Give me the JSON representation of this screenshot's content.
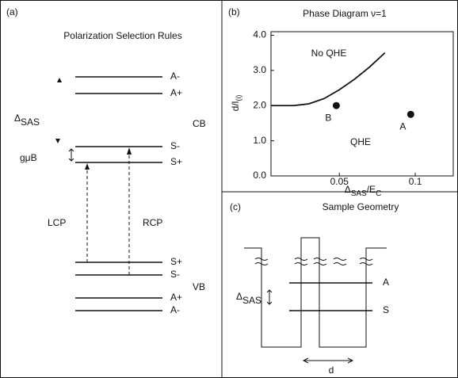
{
  "panel_a": {
    "label": "(a)",
    "title": "Polarization Selection Rules",
    "levels_top": [
      "A-",
      "A+",
      "S-",
      "S+"
    ],
    "cb": "CB",
    "gmub": "gμB",
    "delta": "Δ",
    "delta_sub": "SAS",
    "lcp": "LCP",
    "rcp": "RCP",
    "levels_bottom": [
      "S+",
      "S-",
      "A+",
      "A-"
    ],
    "vb": "VB"
  },
  "chart_data": {
    "type": "line",
    "label": "(b)",
    "title": "Phase Diagram ν=1",
    "ylabel": [
      "d/l",
      "(i)"
    ],
    "xlabel": [
      "Δ",
      "SAS",
      "/E",
      "C"
    ],
    "xlim": [
      0.005,
      0.125
    ],
    "ylim": [
      0,
      4.1
    ],
    "xticks": [
      0.05,
      0.1
    ],
    "yticks": [
      {
        "value": 0,
        "label": "0.0"
      },
      {
        "value": 1,
        "label": "1.0"
      },
      {
        "value": 2,
        "label": "2.0"
      },
      {
        "value": 3,
        "label": "3.0"
      },
      {
        "value": 4,
        "label": "4.0"
      }
    ],
    "x": [
      0.005,
      0.02,
      0.03,
      0.04,
      0.05,
      0.06,
      0.07,
      0.08
    ],
    "values": [
      2.0,
      2.0,
      2.05,
      2.2,
      2.45,
      2.75,
      3.1,
      3.5
    ],
    "points": [
      {
        "name": "B",
        "x": 0.048,
        "y": 2.0
      },
      {
        "name": "A",
        "x": 0.097,
        "y": 1.75
      }
    ],
    "annotations": [
      "No QHE",
      "QHE"
    ]
  },
  "panel_c": {
    "label": "(c)",
    "title": "Sample Geometry",
    "level_a": "A",
    "level_s": "S",
    "delta": "Δ",
    "delta_sub": "SAS",
    "d": "d"
  }
}
